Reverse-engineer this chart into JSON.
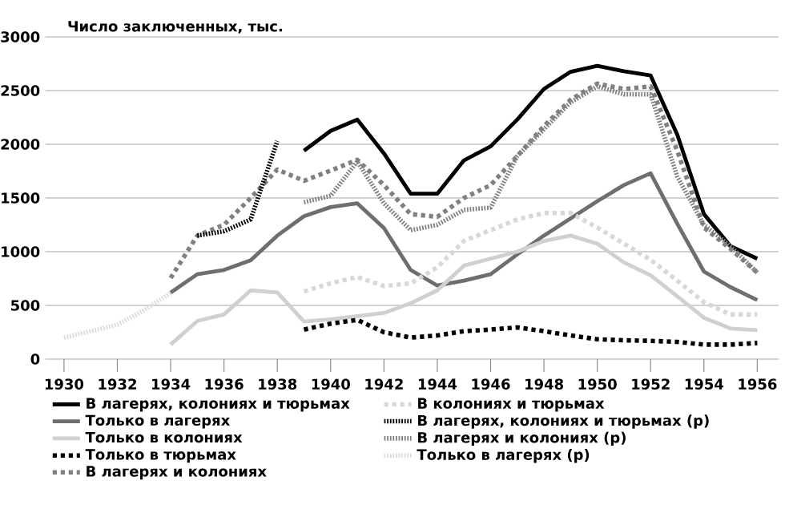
{
  "chart_data": {
    "type": "line",
    "ylabel": "Число заключенных, тыс.",
    "xlim": [
      1929.3,
      1956.8
    ],
    "xticks": [
      1930,
      1932,
      1934,
      1936,
      1938,
      1940,
      1942,
      1944,
      1946,
      1948,
      1950,
      1952,
      1954,
      1956
    ],
    "ylim": [
      0,
      3000
    ],
    "yticks": [
      0,
      500,
      1000,
      1500,
      2000,
      2500,
      3000
    ],
    "grid": "y",
    "legend": "bottom",
    "series": [
      {
        "name": "В лагерях, колониях и тюрьмах",
        "color": "#000000",
        "line_style": "solid",
        "x": [
          1939,
          1940,
          1941,
          1942,
          1943,
          1944,
          1945,
          1946,
          1947,
          1948,
          1949,
          1950,
          1951,
          1952,
          1953,
          1954,
          1955,
          1956
        ],
        "values": [
          1940,
          2125,
          2230,
          1915,
          1540,
          1540,
          1850,
          1980,
          2230,
          2515,
          2675,
          2730,
          2680,
          2640,
          2090,
          1350,
          1050,
          935
        ]
      },
      {
        "name": "Только в лагерях",
        "color": "#6e6e6e",
        "line_style": "solid",
        "x": [
          1934,
          1935,
          1936,
          1937,
          1938,
          1939,
          1940,
          1941,
          1942,
          1943,
          1944,
          1945,
          1946,
          1947,
          1948,
          1949,
          1950,
          1951,
          1952,
          1953,
          1954,
          1955,
          1956
        ],
        "values": [
          620,
          790,
          830,
          920,
          1150,
          1330,
          1415,
          1450,
          1220,
          830,
          685,
          730,
          790,
          975,
          1150,
          1310,
          1470,
          1620,
          1730,
          1260,
          815,
          670,
          550
        ]
      },
      {
        "name": "Только в колониях",
        "color": "#d0d0d0",
        "line_style": "solid",
        "x": [
          1934,
          1935,
          1936,
          1937,
          1938,
          1939,
          1940,
          1941,
          1942,
          1943,
          1944,
          1945,
          1946,
          1947,
          1948,
          1949,
          1950,
          1951,
          1952,
          1953,
          1954,
          1955,
          1956
        ],
        "values": [
          135,
          355,
          415,
          640,
          620,
          350,
          370,
          400,
          430,
          520,
          640,
          870,
          935,
          1000,
          1100,
          1150,
          1075,
          900,
          780,
          585,
          385,
          285,
          270
        ]
      },
      {
        "name": "Только в тюрьмах",
        "color": "#000000",
        "line_style": "dashed",
        "x": [
          1939,
          1940,
          1941,
          1942,
          1943,
          1944,
          1945,
          1946,
          1947,
          1948,
          1949,
          1950,
          1951,
          1952,
          1953,
          1954,
          1955,
          1956
        ],
        "values": [
          275,
          330,
          365,
          250,
          200,
          220,
          260,
          275,
          295,
          260,
          220,
          185,
          175,
          170,
          160,
          135,
          135,
          150
        ]
      },
      {
        "name": "В лагерях и колониях",
        "color": "#808080",
        "line_style": "dashed",
        "x": [
          1934,
          1935,
          1936,
          1937,
          1938,
          1939,
          1940,
          1941,
          1942,
          1943,
          1944,
          1945,
          1946,
          1947,
          1948,
          1949,
          1950,
          1951,
          1952,
          1953,
          1954,
          1955,
          1956
        ],
        "values": [
          755,
          1150,
          1250,
          1500,
          1765,
          1660,
          1755,
          1855,
          1620,
          1350,
          1325,
          1500,
          1620,
          1890,
          2170,
          2415,
          2565,
          2515,
          2540,
          1940,
          1225,
          1025,
          805
        ]
      },
      {
        "name": "В колониях и тюрьмах",
        "color": "#d8d8d8",
        "line_style": "dashed",
        "x": [
          1939,
          1940,
          1941,
          1942,
          1943,
          1944,
          1945,
          1946,
          1947,
          1948,
          1949,
          1950,
          1951,
          1952,
          1953,
          1954,
          1955,
          1956
        ],
        "values": [
          630,
          705,
          765,
          680,
          705,
          855,
          1100,
          1200,
          1300,
          1360,
          1360,
          1225,
          1075,
          925,
          730,
          530,
          415,
          415
        ]
      },
      {
        "name": "В лагерях, колониях и тюрьмах (р)",
        "color": "#000000",
        "line_style": "dotted",
        "x": [
          1935,
          1936,
          1937,
          1938
        ],
        "values": [
          1150,
          1190,
          1300,
          2030
        ]
      },
      {
        "name": "В лагерях и колониях (р)",
        "color": "#808080",
        "line_style": "dotted",
        "x": [
          1939,
          1940,
          1941,
          1942,
          1943,
          1944,
          1945,
          1946,
          1947,
          1948,
          1949,
          1950,
          1951,
          1952,
          1953,
          1954,
          1955,
          1956
        ],
        "values": [
          1460,
          1520,
          1840,
          1450,
          1200,
          1250,
          1390,
          1410,
          1890,
          2140,
          2390,
          2540,
          2465,
          2465,
          1700,
          1250,
          1050,
          805
        ]
      },
      {
        "name": "Только в лагерях (р)",
        "color": "#dcdcdc",
        "line_style": "dotted",
        "x": [
          1930,
          1931,
          1932,
          1933,
          1934
        ],
        "values": [
          200,
          260,
          320,
          455,
          615
        ]
      }
    ]
  }
}
